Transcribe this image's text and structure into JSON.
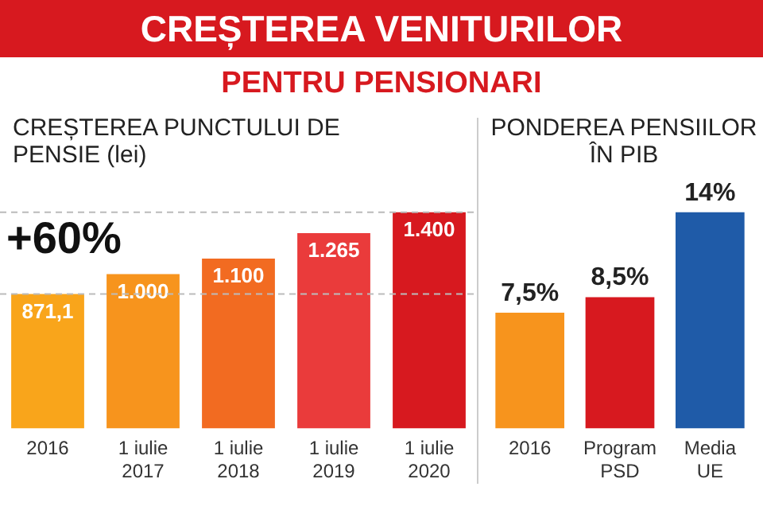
{
  "chart_data": [
    {
      "type": "bar",
      "title": "CREȘTEREA PUNCTULUI DE PENSIE (lei)",
      "annotations": [
        "CREȘTEREA VENITURILOR",
        "PENTRU PENSIONARI",
        "+60%"
      ],
      "categories": [
        "2016",
        "1 iulie 2017",
        "1 iulie 2018",
        "1 iulie 2019",
        "1 iulie 2020"
      ],
      "values": [
        871.1,
        1000,
        1100,
        1265,
        1400
      ],
      "value_labels": [
        "871,1",
        "1.000",
        "1.100",
        "1.265",
        "1.400"
      ],
      "colors": [
        "#f9a51b",
        "#f7941d",
        "#f26b21",
        "#ea3b3b",
        "#d7191f"
      ],
      "ref_lines": [
        {
          "axis": "y",
          "value": 871.1,
          "color": "#bbbbbb",
          "line_style": "dashed"
        },
        {
          "axis": "y",
          "value": 1400,
          "color": "#bbbbbb",
          "line_style": "dashed"
        }
      ],
      "tick_labels": "x",
      "grid": false,
      "legend": false
    },
    {
      "type": "bar",
      "title": "PONDEREA PENSIILOR ÎN PIB",
      "categories": [
        "2016",
        "Program PSD",
        "Media UE"
      ],
      "values": [
        7.5,
        8.5,
        14
      ],
      "value_labels": [
        "7,5%",
        "8,5%",
        "14%"
      ],
      "colors": [
        "#f7941d",
        "#d7191f",
        "#1f5ba8"
      ],
      "tick_labels": "x",
      "grid": false,
      "legend": false
    }
  ]
}
